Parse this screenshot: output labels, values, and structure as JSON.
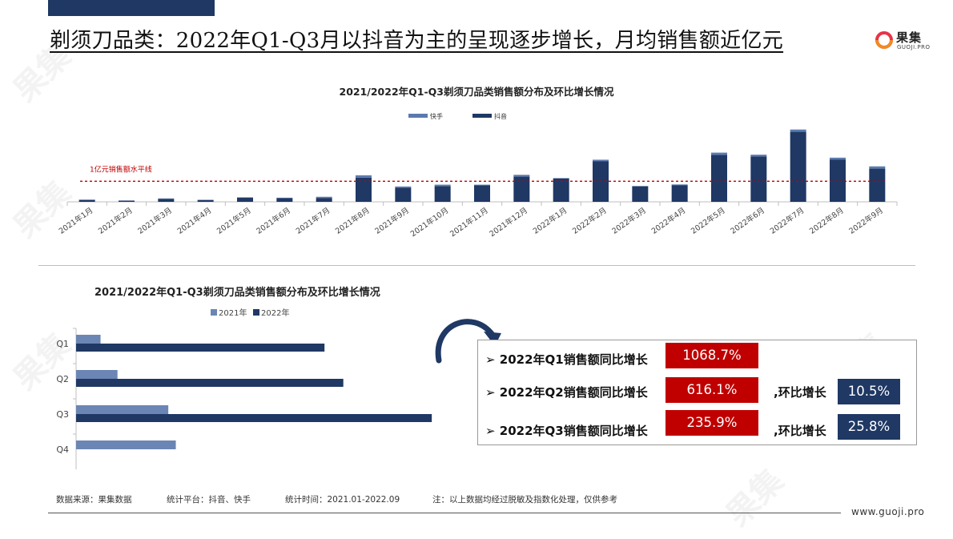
{
  "headline": "剃须刀品类：2022年Q1-Q3月以抖音为主的呈现逐步增长，月均销售额近亿元",
  "logo": {
    "name": "果集",
    "sub": "GUOJI.PRO"
  },
  "colors": {
    "kuaishou": "#5b7bb0",
    "douyin": "#1f3864",
    "y2021": "#6b86b4",
    "y2022": "#1f3864",
    "red": "#c00000",
    "navy": "#1f3864"
  },
  "chart_data": [
    {
      "type": "bar",
      "stacked": true,
      "title": "2021/2022年Q1-Q3剃须刀品类销售额分布及环比增长情况",
      "legend": [
        "快手",
        "抖音"
      ],
      "categories": [
        "2021年1月",
        "2021年2月",
        "2021年3月",
        "2021年4月",
        "2021年5月",
        "2021年6月",
        "2021年7月",
        "2021年8月",
        "2021年9月",
        "2021年10月",
        "2021年11月",
        "2021年12月",
        "2022年1月",
        "2022年2月",
        "2022年3月",
        "2022年4月",
        "2022年5月",
        "2022年6月",
        "2022年7月",
        "2022年8月",
        "2022年9月"
      ],
      "series": [
        {
          "name": "快手",
          "values": [
            0.02,
            0.01,
            0.02,
            0.02,
            0.02,
            0.02,
            0.05,
            0.1,
            0.05,
            0.06,
            0.03,
            0.08,
            0.02,
            0.06,
            0.01,
            0.03,
            0.1,
            0.08,
            0.1,
            0.08,
            0.1
          ]
        },
        {
          "name": "抖音",
          "values": [
            0.08,
            0.05,
            0.13,
            0.07,
            0.18,
            0.16,
            0.17,
            1.06,
            0.62,
            0.69,
            0.72,
            1.1,
            1.02,
            1.78,
            0.68,
            0.73,
            2.05,
            1.98,
            3.06,
            1.85,
            1.45
          ]
        }
      ],
      "annotation": "1亿元销售额水平线",
      "reference_value": 0.9,
      "ylim": [
        0,
        3.5
      ]
    },
    {
      "type": "bar",
      "orientation": "horizontal",
      "title": "2021/2022年Q1-Q3剃须刀品类销售额分布及环比增长情况",
      "legend": [
        "2021年",
        "2022年"
      ],
      "categories": [
        "Q1",
        "Q2",
        "Q3",
        "Q4"
      ],
      "series": [
        {
          "name": "2021年",
          "values": [
            0.65,
            1.1,
            2.45,
            2.65
          ]
        },
        {
          "name": "2022年",
          "values": [
            6.6,
            7.1,
            9.45,
            null
          ]
        }
      ],
      "xlim": [
        0,
        10
      ]
    }
  ],
  "growth": {
    "rows": [
      {
        "label": "2022年Q1销售额同比增长",
        "yoy": "1068.7%",
        "mom_label": "",
        "mom": ""
      },
      {
        "label": "2022年Q2销售额同比增长",
        "yoy": "616.1%",
        "mom_label": ",环比增长",
        "mom": "10.5%"
      },
      {
        "label": "2022年Q3销售额同比增长",
        "yoy": "235.9%",
        "mom_label": ",环比增长",
        "mom": "25.8%"
      }
    ]
  },
  "footer": {
    "source": "数据来源：果集数据",
    "platform": "统计平台：抖音、快手",
    "period": "统计时间：2021.01-2022.09",
    "note": "注：以上数据均经过脱敏及指数化处理，仅供参考",
    "site": "www.guoji.pro"
  }
}
